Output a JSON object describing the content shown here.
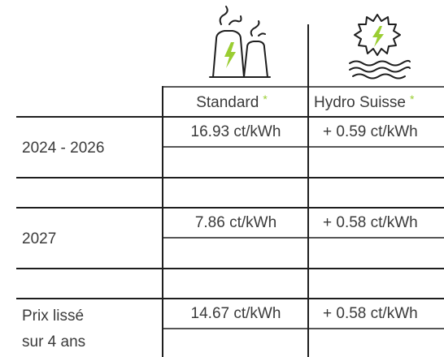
{
  "header": {
    "columns": [
      {
        "label": "Standard",
        "note": "*"
      },
      {
        "label": "Hydro Suisse",
        "note": "*"
      }
    ]
  },
  "table": {
    "rows": [
      {
        "label": [
          "2024 - 2026"
        ],
        "values": [
          "16.93 ct/kWh",
          "+ 0.59 ct/kWh"
        ]
      },
      {
        "label": [
          "2027"
        ],
        "values": [
          "7.86 ct/kWh",
          "+ 0.58 ct/kWh"
        ]
      },
      {
        "label": [
          "Prix lissé",
          "sur 4 ans"
        ],
        "values": [
          "14.67 ct/kWh",
          "+  0.58 ct/kWh"
        ]
      }
    ]
  }
}
